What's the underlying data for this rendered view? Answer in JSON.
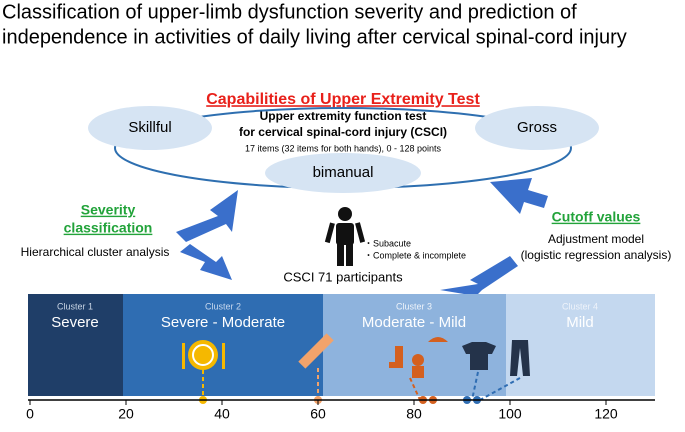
{
  "title": [
    "Classification of upper-limb dysfunction severity and prediction of",
    "independence in activities of daily living after cervical spinal-cord injury"
  ],
  "test": {
    "name": "Capabilities of Upper Extremity Test",
    "skillful": "Skillful",
    "gross": "Gross",
    "bimanual": "bimanual",
    "description": [
      "Upper extremity function test",
      "for cervical spinal-cord injury (CSCI)"
    ],
    "items": "17 items (32 items for both hands), 0 - 128 points"
  },
  "left": {
    "heading": [
      "Severity",
      "classification"
    ],
    "method": "Hierarchical cluster analysis"
  },
  "right": {
    "heading": "Cutoff values",
    "method": [
      "Adjustment model",
      "(logistic regression analysis)"
    ]
  },
  "participants": {
    "notes": [
      "・Subacute",
      "・Complete & incomplete"
    ],
    "label": "CSCI 71 participants"
  },
  "clusters": [
    {
      "id": "Cluster 1",
      "name": "Severe"
    },
    {
      "id": "Cluster 2",
      "name": "Severe - Moderate"
    },
    {
      "id": "Cluster 3",
      "name": "Moderate - Mild"
    },
    {
      "id": "Cluster 4",
      "name": "Mild"
    }
  ],
  "axis_ticks": [
    0,
    20,
    40,
    60,
    80,
    100,
    120
  ]
}
